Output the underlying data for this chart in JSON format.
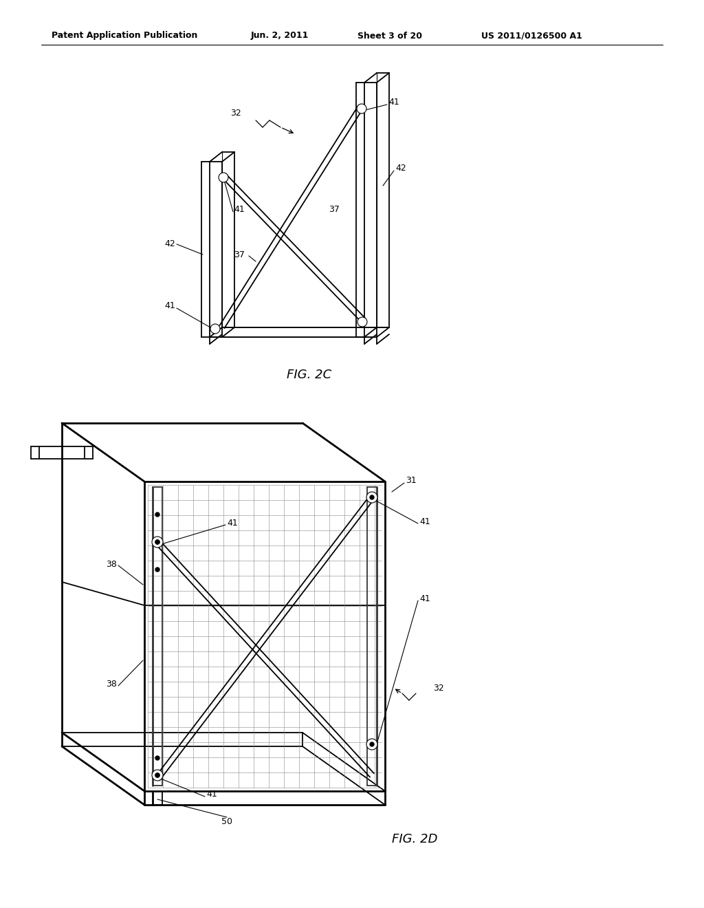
{
  "bg_color": "#ffffff",
  "header_text": "Patent Application Publication",
  "header_date": "Jun. 2, 2011",
  "header_sheet": "Sheet 3 of 20",
  "header_patent": "US 2011/0126500 A1",
  "fig2c_label": "FIG. 2C",
  "fig2d_label": "FIG. 2D"
}
